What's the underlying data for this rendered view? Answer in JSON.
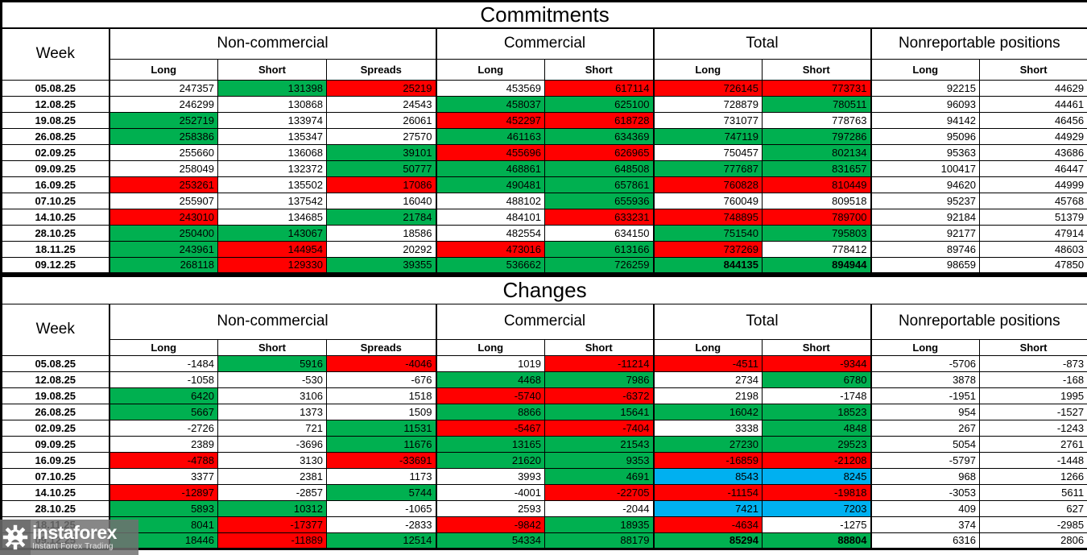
{
  "titles": {
    "commitments": "Commitments",
    "changes": "Changes"
  },
  "header": {
    "week": "Week",
    "groups": [
      {
        "label": "Non-commercial",
        "cols": [
          "Long",
          "Short",
          "Spreads"
        ]
      },
      {
        "label": "Commercial",
        "cols": [
          "Long",
          "Short"
        ]
      },
      {
        "label": "Total",
        "cols": [
          "Long",
          "Short"
        ]
      },
      {
        "label": "Nonreportable positions",
        "cols": [
          "Long",
          "Short"
        ]
      }
    ]
  },
  "colors": {
    "green": "#00B050",
    "red": "#FF0000",
    "blue": "#00B0F0",
    "white": "#FFFFFF"
  },
  "commitments_rows": [
    {
      "date": "05.08.25",
      "cells": [
        [
          "247357",
          "w"
        ],
        [
          "131398",
          "g"
        ],
        [
          "25219",
          "r"
        ],
        [
          "453569",
          "w"
        ],
        [
          "617114",
          "r"
        ],
        [
          "726145",
          "r"
        ],
        [
          "773731",
          "r"
        ],
        [
          "92215",
          "w"
        ],
        [
          "44629",
          "w"
        ]
      ]
    },
    {
      "date": "12.08.25",
      "cells": [
        [
          "246299",
          "w"
        ],
        [
          "130868",
          "w"
        ],
        [
          "24543",
          "w"
        ],
        [
          "458037",
          "g"
        ],
        [
          "625100",
          "g"
        ],
        [
          "728879",
          "w"
        ],
        [
          "780511",
          "g"
        ],
        [
          "96093",
          "w"
        ],
        [
          "44461",
          "w"
        ]
      ]
    },
    {
      "date": "19.08.25",
      "cells": [
        [
          "252719",
          "g"
        ],
        [
          "133974",
          "w"
        ],
        [
          "26061",
          "w"
        ],
        [
          "452297",
          "r"
        ],
        [
          "618728",
          "r"
        ],
        [
          "731077",
          "w"
        ],
        [
          "778763",
          "w"
        ],
        [
          "94142",
          "w"
        ],
        [
          "46456",
          "w"
        ]
      ]
    },
    {
      "date": "26.08.25",
      "cells": [
        [
          "258386",
          "g"
        ],
        [
          "135347",
          "w"
        ],
        [
          "27570",
          "w"
        ],
        [
          "461163",
          "g"
        ],
        [
          "634369",
          "g"
        ],
        [
          "747119",
          "g"
        ],
        [
          "797286",
          "g"
        ],
        [
          "95096",
          "w"
        ],
        [
          "44929",
          "w"
        ]
      ]
    },
    {
      "date": "02.09.25",
      "cells": [
        [
          "255660",
          "w"
        ],
        [
          "136068",
          "w"
        ],
        [
          "39101",
          "g"
        ],
        [
          "455696",
          "r"
        ],
        [
          "626965",
          "r"
        ],
        [
          "750457",
          "w"
        ],
        [
          "802134",
          "g"
        ],
        [
          "95363",
          "w"
        ],
        [
          "43686",
          "w"
        ]
      ]
    },
    {
      "date": "09.09.25",
      "cells": [
        [
          "258049",
          "w"
        ],
        [
          "132372",
          "w"
        ],
        [
          "50777",
          "g"
        ],
        [
          "468861",
          "g"
        ],
        [
          "648508",
          "g"
        ],
        [
          "777687",
          "g"
        ],
        [
          "831657",
          "g"
        ],
        [
          "100417",
          "w"
        ],
        [
          "46447",
          "w"
        ]
      ]
    },
    {
      "date": "16.09.25",
      "cells": [
        [
          "253261",
          "r"
        ],
        [
          "135502",
          "w"
        ],
        [
          "17086",
          "r"
        ],
        [
          "490481",
          "g"
        ],
        [
          "657861",
          "g"
        ],
        [
          "760828",
          "r"
        ],
        [
          "810449",
          "r"
        ],
        [
          "94620",
          "w"
        ],
        [
          "44999",
          "w"
        ]
      ]
    },
    {
      "date": "07.10.25",
      "cells": [
        [
          "255907",
          "w"
        ],
        [
          "137542",
          "w"
        ],
        [
          "16040",
          "w"
        ],
        [
          "488102",
          "w"
        ],
        [
          "655936",
          "g"
        ],
        [
          "760049",
          "w"
        ],
        [
          "809518",
          "w"
        ],
        [
          "95237",
          "w"
        ],
        [
          "45768",
          "w"
        ]
      ]
    },
    {
      "date": "14.10.25",
      "cells": [
        [
          "243010",
          "r"
        ],
        [
          "134685",
          "w"
        ],
        [
          "21784",
          "g"
        ],
        [
          "484101",
          "w"
        ],
        [
          "633231",
          "r"
        ],
        [
          "748895",
          "r"
        ],
        [
          "789700",
          "r"
        ],
        [
          "92184",
          "w"
        ],
        [
          "51379",
          "w"
        ]
      ]
    },
    {
      "date": "28.10.25",
      "cells": [
        [
          "250400",
          "g"
        ],
        [
          "143067",
          "g"
        ],
        [
          "18586",
          "w"
        ],
        [
          "482554",
          "w"
        ],
        [
          "634150",
          "w"
        ],
        [
          "751540",
          "g"
        ],
        [
          "795803",
          "g"
        ],
        [
          "92177",
          "w"
        ],
        [
          "47914",
          "w"
        ]
      ]
    },
    {
      "date": "18.11.25",
      "cells": [
        [
          "243961",
          "g"
        ],
        [
          "144954",
          "r"
        ],
        [
          "20292",
          "w"
        ],
        [
          "473016",
          "r"
        ],
        [
          "613166",
          "g"
        ],
        [
          "737269",
          "r"
        ],
        [
          "778412",
          "w"
        ],
        [
          "89746",
          "w"
        ],
        [
          "48603",
          "w"
        ]
      ]
    },
    {
      "date": "09.12.25",
      "cells": [
        [
          "268118",
          "g"
        ],
        [
          "129330",
          "r"
        ],
        [
          "39355",
          "g"
        ],
        [
          "536662",
          "g"
        ],
        [
          "726259",
          "g"
        ],
        [
          "844135",
          "g",
          1
        ],
        [
          "894944",
          "g",
          1
        ],
        [
          "98659",
          "w"
        ],
        [
          "47850",
          "w"
        ]
      ]
    }
  ],
  "changes_rows": [
    {
      "date": "05.08.25",
      "cells": [
        [
          "-1484",
          "w"
        ],
        [
          "5916",
          "g"
        ],
        [
          "-4046",
          "r"
        ],
        [
          "1019",
          "w"
        ],
        [
          "-11214",
          "r"
        ],
        [
          "-4511",
          "r"
        ],
        [
          "-9344",
          "r"
        ],
        [
          "-5706",
          "w"
        ],
        [
          "-873",
          "w"
        ]
      ]
    },
    {
      "date": "12.08.25",
      "cells": [
        [
          "-1058",
          "w"
        ],
        [
          "-530",
          "w"
        ],
        [
          "-676",
          "w"
        ],
        [
          "4468",
          "g"
        ],
        [
          "7986",
          "g"
        ],
        [
          "2734",
          "w"
        ],
        [
          "6780",
          "g"
        ],
        [
          "3878",
          "w"
        ],
        [
          "-168",
          "w"
        ]
      ]
    },
    {
      "date": "19.08.25",
      "cells": [
        [
          "6420",
          "g"
        ],
        [
          "3106",
          "w"
        ],
        [
          "1518",
          "w"
        ],
        [
          "-5740",
          "r"
        ],
        [
          "-6372",
          "r"
        ],
        [
          "2198",
          "w"
        ],
        [
          "-1748",
          "w"
        ],
        [
          "-1951",
          "w"
        ],
        [
          "1995",
          "w"
        ]
      ]
    },
    {
      "date": "26.08.25",
      "cells": [
        [
          "5667",
          "g"
        ],
        [
          "1373",
          "w"
        ],
        [
          "1509",
          "w"
        ],
        [
          "8866",
          "g"
        ],
        [
          "15641",
          "g"
        ],
        [
          "16042",
          "g"
        ],
        [
          "18523",
          "g"
        ],
        [
          "954",
          "w"
        ],
        [
          "-1527",
          "w"
        ]
      ]
    },
    {
      "date": "02.09.25",
      "cells": [
        [
          "-2726",
          "w"
        ],
        [
          "721",
          "w"
        ],
        [
          "11531",
          "g"
        ],
        [
          "-5467",
          "r"
        ],
        [
          "-7404",
          "r"
        ],
        [
          "3338",
          "w"
        ],
        [
          "4848",
          "g"
        ],
        [
          "267",
          "w"
        ],
        [
          "-1243",
          "w"
        ]
      ]
    },
    {
      "date": "09.09.25",
      "cells": [
        [
          "2389",
          "w"
        ],
        [
          "-3696",
          "w"
        ],
        [
          "11676",
          "g"
        ],
        [
          "13165",
          "g"
        ],
        [
          "21543",
          "g"
        ],
        [
          "27230",
          "g"
        ],
        [
          "29523",
          "g"
        ],
        [
          "5054",
          "w"
        ],
        [
          "2761",
          "w"
        ]
      ]
    },
    {
      "date": "16.09.25",
      "cells": [
        [
          "-4788",
          "r"
        ],
        [
          "3130",
          "w"
        ],
        [
          "-33691",
          "r"
        ],
        [
          "21620",
          "g"
        ],
        [
          "9353",
          "g"
        ],
        [
          "-16859",
          "r"
        ],
        [
          "-21208",
          "r"
        ],
        [
          "-5797",
          "w"
        ],
        [
          "-1448",
          "w"
        ]
      ]
    },
    {
      "date": "07.10.25",
      "cells": [
        [
          "3377",
          "w"
        ],
        [
          "2381",
          "w"
        ],
        [
          "1173",
          "w"
        ],
        [
          "3993",
          "w"
        ],
        [
          "4691",
          "g"
        ],
        [
          "8543",
          "b"
        ],
        [
          "8245",
          "b"
        ],
        [
          "968",
          "w"
        ],
        [
          "1266",
          "w"
        ]
      ]
    },
    {
      "date": "14.10.25",
      "cells": [
        [
          "-12897",
          "r"
        ],
        [
          "-2857",
          "w"
        ],
        [
          "5744",
          "g"
        ],
        [
          "-4001",
          "w"
        ],
        [
          "-22705",
          "r"
        ],
        [
          "-11154",
          "r"
        ],
        [
          "-19818",
          "r"
        ],
        [
          "-3053",
          "w"
        ],
        [
          "5611",
          "w"
        ]
      ]
    },
    {
      "date": "28.10.25",
      "cells": [
        [
          "5893",
          "g"
        ],
        [
          "10312",
          "g"
        ],
        [
          "-1065",
          "w"
        ],
        [
          "2593",
          "w"
        ],
        [
          "-2044",
          "w"
        ],
        [
          "7421",
          "b"
        ],
        [
          "7203",
          "b"
        ],
        [
          "409",
          "w"
        ],
        [
          "627",
          "w"
        ]
      ]
    },
    {
      "date": "18.11.25",
      "cells": [
        [
          "8041",
          "g"
        ],
        [
          "-17377",
          "r"
        ],
        [
          "-2833",
          "w"
        ],
        [
          "-9842",
          "r"
        ],
        [
          "18935",
          "g"
        ],
        [
          "-4634",
          "r"
        ],
        [
          "-1275",
          "w"
        ],
        [
          "374",
          "w"
        ],
        [
          "-2985",
          "w"
        ]
      ]
    },
    {
      "date": "09.12.25",
      "cells": [
        [
          "18446",
          "g"
        ],
        [
          "-11889",
          "r"
        ],
        [
          "12514",
          "g"
        ],
        [
          "54334",
          "g"
        ],
        [
          "88179",
          "g"
        ],
        [
          "85294",
          "g",
          1
        ],
        [
          "88804",
          "g",
          1
        ],
        [
          "6316",
          "w"
        ],
        [
          "2806",
          "w"
        ]
      ]
    }
  ],
  "watermark": {
    "brand": "instaforex",
    "tagline": "Instant Forex Trading"
  }
}
